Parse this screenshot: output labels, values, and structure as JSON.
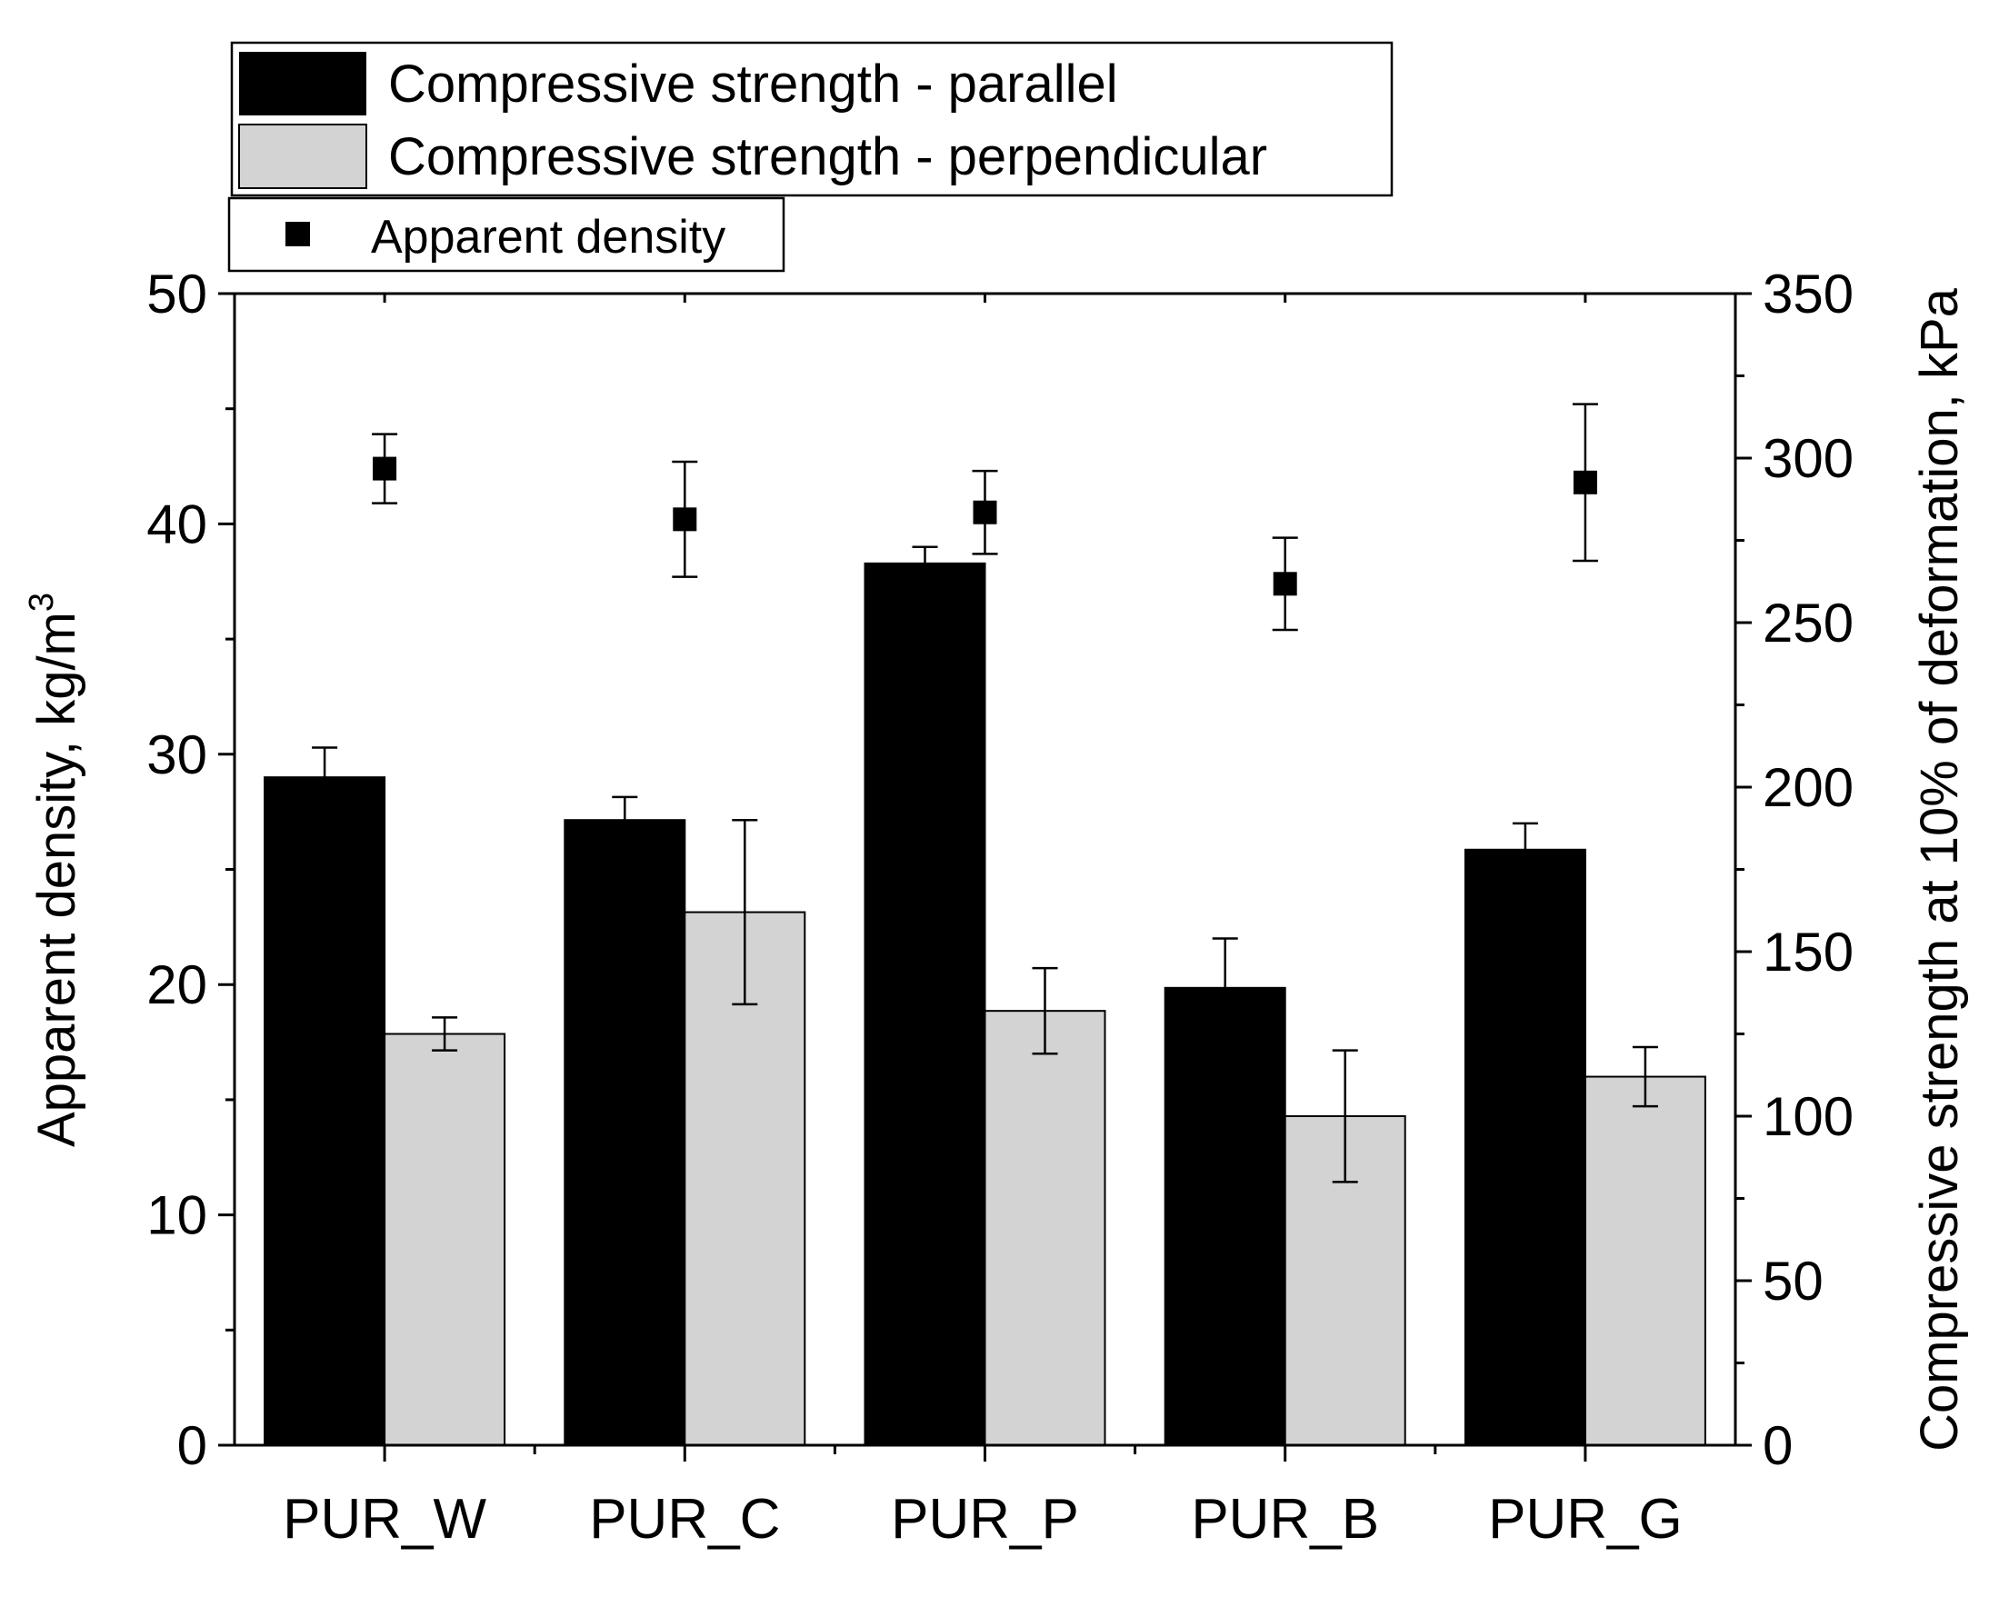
{
  "chart_data": {
    "type": "bar",
    "categories": [
      "PUR_W",
      "PUR_C",
      "PUR_P",
      "PUR_B",
      "PUR_G"
    ],
    "left_axis": {
      "label_main": "Apparent density, kg/m",
      "label_sup": "3",
      "ylim": [
        0,
        50
      ],
      "ticks": [
        "0",
        "10",
        "20",
        "30",
        "40",
        "50"
      ]
    },
    "right_axis": {
      "label": "Compressive strength at 10% of deformation, kPa",
      "ylim": [
        0,
        350
      ],
      "ticks": [
        "0",
        "50",
        "100",
        "150",
        "200",
        "250",
        "300",
        "350"
      ]
    },
    "series": [
      {
        "name": "Compressive strength - parallel",
        "axis": "right",
        "kind": "bar",
        "color": "#000000",
        "values": [
          203,
          190,
          268,
          139,
          181
        ],
        "errors": [
          9,
          7,
          5,
          15,
          8
        ]
      },
      {
        "name": "Compressive strength - perpendicular",
        "axis": "right",
        "kind": "bar",
        "color": "#d3d3d3",
        "values": [
          125,
          162,
          132,
          100,
          112
        ],
        "errors": [
          5,
          28,
          13,
          20,
          9
        ]
      },
      {
        "name": "Apparent density",
        "axis": "left",
        "kind": "scatter",
        "color": "#000000",
        "values": [
          42.4,
          40.2,
          40.5,
          37.4,
          41.8
        ],
        "errors": [
          1.5,
          2.5,
          1.8,
          2.0,
          3.4
        ]
      }
    ],
    "legend": {
      "box1": [
        "Compressive strength - parallel",
        "Compressive strength - perpendicular"
      ],
      "box2": [
        "Apparent density"
      ],
      "placement": "top-left, above plot"
    }
  }
}
